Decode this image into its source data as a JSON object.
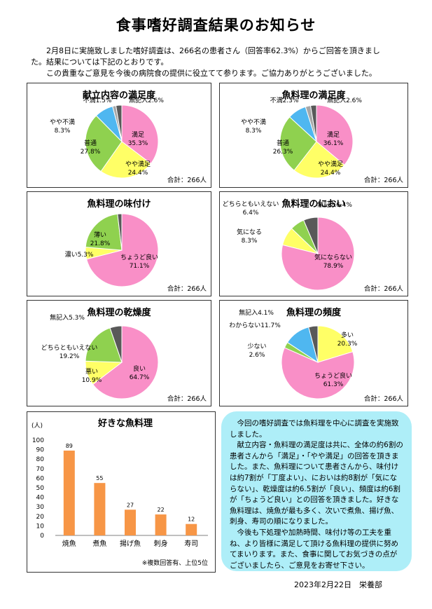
{
  "title": "食事嗜好調査結果のお知らせ",
  "intro": {
    "line1": "2月8日に実施致しました嗜好調査は、266名の患者さん（回答率62.3%）からご回答を頂きまし",
    "line2": "た。結果については下記のとおりです。",
    "line3": "この貴重なご意見を今後の病院食の提供に役立てて参ります。ご協力ありがとうございました。"
  },
  "colors": {
    "pink": "#f98fc7",
    "yellow": "#ffff66",
    "green": "#8fd14f",
    "blue": "#4fb7f0",
    "gray": "#a6a6a6",
    "dark": "#595959",
    "orange": "#f79646"
  },
  "charts": [
    {
      "title": "献立内容の満足度",
      "total": "合計：266人",
      "slices": [
        {
          "name": "満足",
          "value": 35.3,
          "color": "pink",
          "label": "満足",
          "pct": "35.3%"
        },
        {
          "name": "やや満足",
          "value": 24.4,
          "color": "yellow",
          "label": "やや満足",
          "pct": "24.4%"
        },
        {
          "name": "普通",
          "value": 27.8,
          "color": "green",
          "label": "普通",
          "pct": "27.8%"
        },
        {
          "name": "やや不満",
          "value": 8.3,
          "color": "blue",
          "label": "やや不満",
          "pct": "8.3%"
        },
        {
          "name": "不満",
          "value": 1.5,
          "color": "gray",
          "label": "不満1.5%",
          "pct": ""
        },
        {
          "name": "無記入",
          "value": 2.6,
          "color": "dark",
          "label": "無記入2.6%",
          "pct": ""
        }
      ]
    },
    {
      "title": "魚料理の満足度",
      "total": "合計：266人",
      "slices": [
        {
          "name": "満足",
          "value": 36.1,
          "color": "pink",
          "label": "満足",
          "pct": "36.1%"
        },
        {
          "name": "やや満足",
          "value": 24.4,
          "color": "yellow",
          "label": "やや満足",
          "pct": "24.4%"
        },
        {
          "name": "普通",
          "value": 26.3,
          "color": "green",
          "label": "普通",
          "pct": "26.3%"
        },
        {
          "name": "やや不満",
          "value": 8.3,
          "color": "blue",
          "label": "やや不満",
          "pct": "8.3%"
        },
        {
          "name": "不満",
          "value": 2.3,
          "color": "gray",
          "label": "不満2.3%",
          "pct": ""
        },
        {
          "name": "無記入",
          "value": 2.6,
          "color": "dark",
          "label": "無記入2.6%",
          "pct": ""
        }
      ]
    },
    {
      "title": "魚料理の味付け",
      "total": "合計：266人",
      "slices": [
        {
          "name": "ちょうど良い",
          "value": 71.1,
          "color": "pink",
          "label": "ちょうど良い",
          "pct": "71.1%"
        },
        {
          "name": "濃い",
          "value": 5.3,
          "color": "yellow",
          "label": "濃い5.3%",
          "pct": ""
        },
        {
          "name": "薄い",
          "value": 21.8,
          "color": "green",
          "label": "薄い",
          "pct": "21.8%"
        },
        {
          "name": "無記入",
          "value": 1.9,
          "color": "dark",
          "label": "無記入1.9%",
          "pct": ""
        }
      ]
    },
    {
      "title": "魚料理のにおい",
      "total": "合計：266人",
      "slices": [
        {
          "name": "気にならない",
          "value": 78.9,
          "color": "pink",
          "label": "気にならない",
          "pct": "78.9%"
        },
        {
          "name": "気になる",
          "value": 8.3,
          "color": "yellow",
          "label": "気になる",
          "pct": "8.3%"
        },
        {
          "name": "どちらともいえない",
          "value": 6.4,
          "color": "green",
          "label": "どちらともいえない",
          "pct": "6.4%"
        },
        {
          "name": "無記入",
          "value": 6.4,
          "color": "dark",
          "label": "無記入6.4%",
          "pct": ""
        }
      ]
    },
    {
      "title": "魚料理の乾燥度",
      "total": "合計：266人",
      "slices": [
        {
          "name": "良い",
          "value": 64.7,
          "color": "pink",
          "label": "良い",
          "pct": "64.7%"
        },
        {
          "name": "悪い",
          "value": 10.9,
          "color": "yellow",
          "label": "悪い",
          "pct": "10.9%"
        },
        {
          "name": "どちらともいえない",
          "value": 19.2,
          "color": "green",
          "label": "どちらともいえない",
          "pct": "19.2%"
        },
        {
          "name": "無記入",
          "value": 5.3,
          "color": "dark",
          "label": "無記入5.3%",
          "pct": ""
        }
      ]
    },
    {
      "title": "魚料理の頻度",
      "total": "合計：266人",
      "slices": [
        {
          "name": "多い",
          "value": 20.3,
          "color": "yellow",
          "label": "多い",
          "pct": "20.3%"
        },
        {
          "name": "ちょうど良い",
          "value": 61.3,
          "color": "pink",
          "label": "ちょうど良い",
          "pct": "61.3%"
        },
        {
          "name": "少ない",
          "value": 2.6,
          "color": "green",
          "label": "少ない",
          "pct": "2.6%"
        },
        {
          "name": "わからない",
          "value": 11.7,
          "color": "blue",
          "label": "わからない11.7%",
          "pct": ""
        },
        {
          "name": "無記入",
          "value": 4.1,
          "color": "dark",
          "label": "無記入4.1%",
          "pct": ""
        }
      ]
    }
  ],
  "chart_data": {
    "type": "bar",
    "title": "好きな魚料理",
    "ylabel": "(人)",
    "ylim": [
      0,
      100
    ],
    "yticks": [
      "0",
      "10",
      "20",
      "30",
      "40",
      "50",
      "60",
      "70",
      "80",
      "90",
      "100"
    ],
    "categories": [
      "焼魚",
      "煮魚",
      "揚げ魚",
      "刺身",
      "寿司"
    ],
    "values": [
      89,
      55,
      27,
      22,
      12
    ],
    "value_labels": [
      "89",
      "55",
      "27",
      "22",
      "12"
    ],
    "note": "※複数回答有、上位5位",
    "color": "#f79646"
  },
  "note_paragraphs": [
    "今回の嗜好調査では魚料理を中心に調査を実施致しました。",
    "献立内容・魚料理の満足度は共に、全体の約6割の患者さんから「満足」・「やや満足」の回答を頂きました。また、魚料理について患者さんから、味付けは約7割が「丁度よい」、においは約8割が「気にならない」、乾燥度は約6.5割が「良い」、頻度は約6割が「ちょうど良い」との回答を頂きました。好きな魚料理は、焼魚が最も多く、次いで煮魚、揚げ魚、刺身、寿司の順になりました。",
    "今後も下処理や加熱時間、味付け等の工夫を重ね、より皆様に満足して頂ける魚料理の提供に努めてまいります。また、食事に関してお気づきの点がございましたら、ご意見をお寄せ下さい。"
  ],
  "footer": "2023年2月22日　栄養部"
}
